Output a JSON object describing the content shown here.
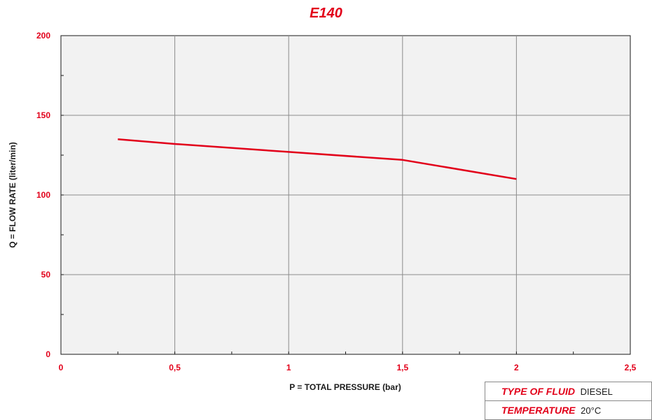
{
  "chart_data": {
    "type": "line",
    "title": "E140",
    "xlabel": "P = TOTAL PRESSURE (bar)",
    "ylabel": "Q = FLOW RATE (liter/min)",
    "xlim": [
      0,
      2.5
    ],
    "ylim": [
      0,
      200
    ],
    "x_ticks": [
      "0",
      "0,5",
      "1",
      "1,5",
      "2",
      "2,5"
    ],
    "y_ticks": [
      "0",
      "50",
      "100",
      "150",
      "200"
    ],
    "grid": true,
    "series": [
      {
        "x": [
          0.25,
          0.5,
          1.0,
          1.5,
          2.0
        ],
        "values": [
          135,
          132,
          127,
          122,
          110
        ],
        "color": "#e2001a"
      }
    ]
  },
  "info": {
    "fluid_key": "TYPE OF FLUID",
    "fluid_value": "DIESEL",
    "temp_key": "TEMPERATURE",
    "temp_value": "20°C"
  },
  "colors": {
    "accent": "#e2001a",
    "plot_bg": "#f2f2f2",
    "grid": "#8c8c8c"
  }
}
